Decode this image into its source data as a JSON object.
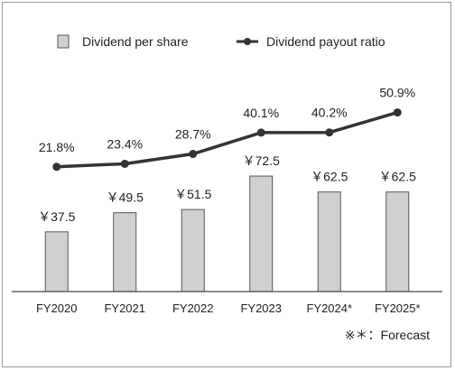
{
  "chart_data": {
    "type": "bar",
    "categories": [
      "FY2020",
      "FY2021",
      "FY2022",
      "FY2023",
      "FY2024*",
      "FY2025*"
    ],
    "series": [
      {
        "name": "Dividend per share",
        "type": "bar",
        "axis": "left",
        "values": [
          37.5,
          49.5,
          51.5,
          72.5,
          62.5,
          62.5
        ],
        "labels": [
          "￥37.5",
          "￥49.5",
          "￥51.5",
          "￥72.5",
          "￥62.5",
          "￥62.5"
        ],
        "color": "#d0d0d0",
        "stroke": "#555555"
      },
      {
        "name": "Dividend payout ratio",
        "type": "line",
        "axis": "right",
        "values": [
          21.8,
          23.4,
          28.7,
          40.1,
          40.2,
          50.9
        ],
        "labels": [
          "21.8%",
          "23.4%",
          "28.7%",
          "40.1%",
          "40.2%",
          "50.9%"
        ],
        "color": "#333333"
      }
    ],
    "ylim_left": [
      0,
      170
    ],
    "ylim_right": [
      -45,
      100
    ],
    "grid": false,
    "legend_position": "top",
    "note": "※＊：Forecast"
  }
}
